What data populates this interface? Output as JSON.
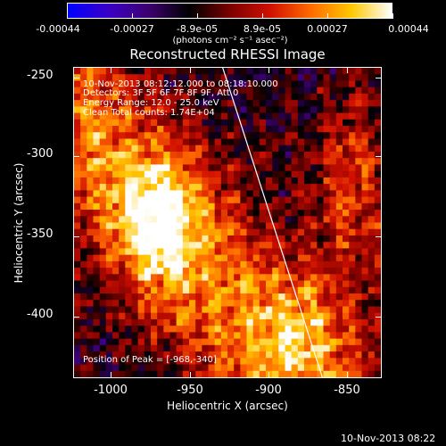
{
  "colorbar": {
    "tick_labels": [
      "-0.00044",
      "-0.00027",
      "-8.9e-05",
      "8.9e-05",
      "0.00027",
      "0.00044"
    ],
    "units": "(photons cm⁻² s⁻¹ asec⁻²)",
    "colormap": [
      "#0000ff",
      "#3a00c8",
      "#3c0070",
      "#000000",
      "#7a0000",
      "#d01000",
      "#ff6a00",
      "#ffc800",
      "#ffffff"
    ]
  },
  "plot": {
    "title": "Reconstructed RHESSI Image",
    "info_lines": [
      "10-Nov-2013 08:12:12.000 to 08:18:10.000",
      "Detectors: 3F 5F 6F 7F 8F 9F, Att 0",
      "Energy Range: 12.0 - 25.0 keV",
      "Clean     Total counts: 1.74E+04"
    ],
    "peak_label": "Position of Peak = [-968,-340]",
    "xlabel": "Heliocentric X (arcsec)",
    "ylabel": "Heliocentric Y (arcsec)",
    "xticks": [
      "-1000",
      "-950",
      "-900",
      "-850"
    ],
    "yticks": [
      "-250",
      "-300",
      "-350",
      "-400"
    ],
    "limb_color": "#ffffff"
  },
  "chart_data": {
    "type": "heatmap",
    "title": "Reconstructed RHESSI Image",
    "xlabel": "Heliocentric X (arcsec)",
    "ylabel": "Heliocentric Y (arcsec)",
    "xlim": [
      -1022,
      -828
    ],
    "ylim": [
      -438,
      -243
    ],
    "color_range": [
      -0.00044,
      0.00044
    ],
    "peak": [
      -968,
      -340
    ],
    "limb_line": [
      [
        -928,
        -243
      ],
      [
        -865,
        -438
      ]
    ]
  },
  "footer": {
    "timestamp": "10-Nov-2013 08:22"
  }
}
